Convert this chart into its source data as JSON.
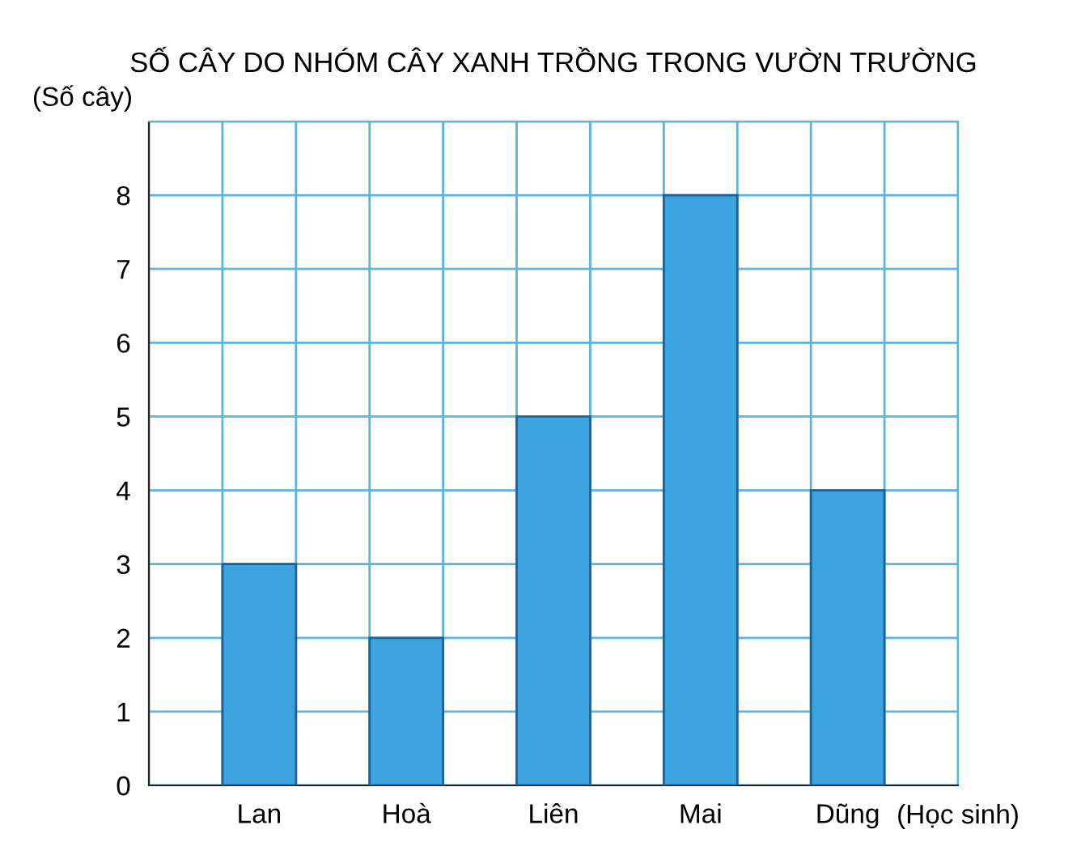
{
  "chart_data": {
    "type": "bar",
    "title": "SỐ CÂY DO NHÓM CÂY XANH TRỒNG TRONG VƯỜN TRƯỜNG",
    "xlabel": "(Học sinh)",
    "ylabel": "(Số cây)",
    "categories": [
      "Lan",
      "Hoà",
      "Liên",
      "Mai",
      "Dũng"
    ],
    "values": [
      3,
      2,
      5,
      8,
      4
    ],
    "color": "#3ba3dd",
    "ylim": [
      0,
      9
    ],
    "yticks": [
      0,
      1,
      2,
      3,
      4,
      5,
      6,
      7,
      8,
      {
        "value": 9,
        "label": null
      }
    ],
    "grid": true
  }
}
